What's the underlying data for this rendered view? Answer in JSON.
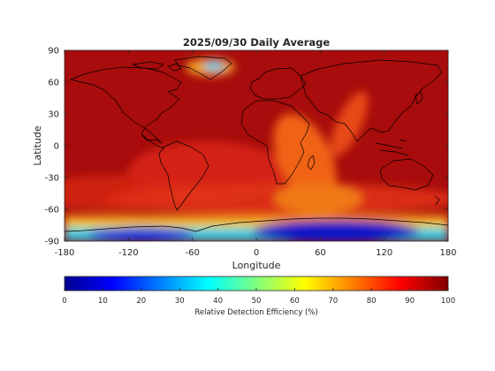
{
  "chart_data": {
    "type": "heatmap",
    "title": "2025/09/30 Daily Average",
    "xlabel": "Longitude",
    "ylabel": "Latitude",
    "xlim": [
      -180,
      180
    ],
    "ylim": [
      -90,
      90
    ],
    "x_ticks": [
      -180,
      -120,
      -60,
      0,
      60,
      120,
      180
    ],
    "y_ticks": [
      -90,
      -60,
      -30,
      0,
      30,
      60,
      90
    ],
    "grid": false,
    "colormap": "jet",
    "colorbar": {
      "label": "Relative Detection Efficiency (%)",
      "range": [
        0,
        100
      ],
      "ticks": [
        0,
        10,
        20,
        30,
        40,
        50,
        60,
        70,
        80,
        90,
        100
      ],
      "placement": "bottom"
    },
    "field_description_values": {
      "background_level": 97,
      "features": [
        {
          "name": "greenland-low",
          "lon": -38,
          "lat": 69,
          "min": 45
        },
        {
          "name": "africa-indian-band",
          "lon": 45,
          "lat": -5,
          "min": 82
        },
        {
          "name": "southern-ocean-low",
          "lon": 90,
          "lat": -82,
          "min": 2
        },
        {
          "name": "south-pacific-low",
          "lon": -110,
          "lat": -83,
          "min": 10
        }
      ]
    }
  }
}
